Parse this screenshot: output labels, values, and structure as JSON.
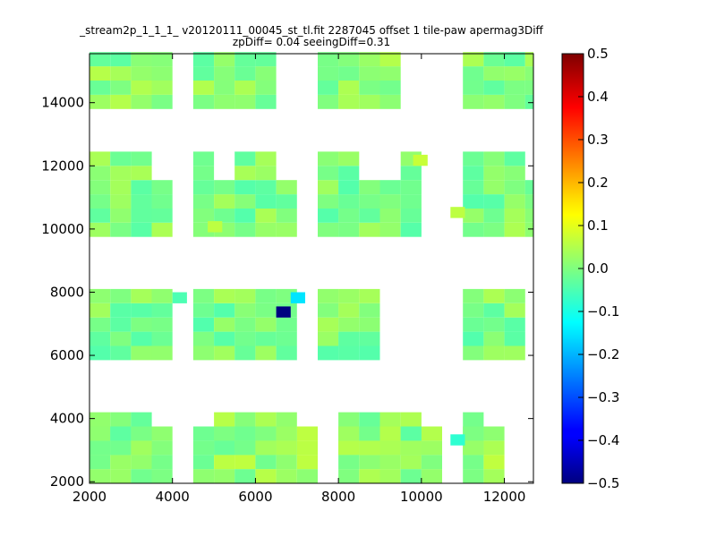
{
  "chart_data": {
    "type": "heatmap",
    "title_line1": "_stream2p_1_1_1_ v20120111_00045_st_tl.fit 2287045 offset 1 tile-paw apermag3Diff",
    "title_line2": "zpDiff= 0.04 seeingDiff=0.31",
    "xlim": [
      2000,
      12700
    ],
    "ylim": [
      1950,
      15550
    ],
    "x_ticks": [
      2000,
      4000,
      6000,
      8000,
      10000,
      12000
    ],
    "y_ticks": [
      2000,
      4000,
      6000,
      8000,
      10000,
      12000,
      14000
    ],
    "colorbar": {
      "colormap": "jet",
      "range": [
        -0.5,
        0.5
      ],
      "ticks": [
        -0.5,
        -0.4,
        -0.3,
        -0.2,
        -0.1,
        0.0,
        0.1,
        0.2,
        0.3,
        0.4,
        0.5
      ],
      "tick_labels": [
        "−0.5",
        "−0.4",
        "−0.3",
        "−0.2",
        "−0.1",
        "0.0",
        "0.1",
        "0.2",
        "0.3",
        "0.4",
        "0.5"
      ]
    },
    "cell_size": [
      500,
      450
    ],
    "x_bins": [
      2000,
      2500,
      3000,
      3500,
      4000,
      4500,
      5000,
      5500,
      6000,
      6500,
      7000,
      7500,
      8000,
      8500,
      9000,
      9500,
      10000,
      10500,
      11000,
      11500,
      12000,
      12500
    ],
    "y_bands": [
      {
        "y0": 1950,
        "rows": 4,
        "pattern": [
          1,
          1,
          1,
          1,
          0,
          1,
          1,
          1,
          1,
          1,
          1,
          0,
          1,
          1,
          1,
          1,
          1,
          0,
          1,
          1,
          0,
          0
        ],
        "v": 0.02
      },
      {
        "y0": 2850,
        "rows": 3,
        "pattern": [
          1,
          1,
          1,
          0,
          0,
          0,
          1,
          1,
          1,
          1,
          0,
          0,
          1,
          1,
          1,
          1,
          0,
          0,
          1,
          0,
          0,
          0
        ],
        "v": 0.01
      },
      {
        "y0": 5850,
        "rows": 5,
        "pattern": [
          1,
          1,
          1,
          1,
          0,
          1,
          1,
          1,
          1,
          1,
          0,
          1,
          1,
          1,
          0,
          0,
          0,
          0,
          1,
          1,
          1,
          0
        ],
        "v": 0.0
      },
      {
        "y0": 9750,
        "rows": 4,
        "pattern": [
          1,
          1,
          1,
          1,
          0,
          1,
          1,
          1,
          1,
          1,
          0,
          1,
          1,
          1,
          1,
          1,
          0,
          0,
          1,
          1,
          1,
          1
        ],
        "v": 0.0
      },
      {
        "y0": 11550,
        "rows": 2,
        "pattern": [
          1,
          1,
          1,
          0,
          0,
          1,
          0,
          1,
          1,
          0,
          0,
          1,
          1,
          0,
          0,
          1,
          0,
          0,
          1,
          1,
          1,
          0
        ],
        "v": 0.0
      },
      {
        "y0": 13800,
        "rows": 4,
        "pattern": [
          1,
          1,
          1,
          1,
          0,
          1,
          1,
          1,
          1,
          0,
          0,
          1,
          1,
          1,
          1,
          0,
          0,
          0,
          1,
          1,
          1,
          1
        ],
        "v": 0.01
      },
      {
        "y0": 15600,
        "rows": 0,
        "pattern": [],
        "v": 0
      }
    ],
    "special_cells": [
      {
        "x": 6500,
        "y": 7200,
        "v": -0.5
      },
      {
        "x": 6850,
        "y": 7650,
        "v": -0.15
      },
      {
        "x": 4000,
        "y": 7650,
        "v": -0.05
      },
      {
        "x": 9800,
        "y": 12000,
        "v": 0.07
      },
      {
        "x": 10700,
        "y": 10350,
        "v": 0.06
      },
      {
        "x": 10700,
        "y": 3150,
        "v": -0.08
      },
      {
        "x": 4850,
        "y": 9900,
        "v": 0.06
      }
    ]
  }
}
